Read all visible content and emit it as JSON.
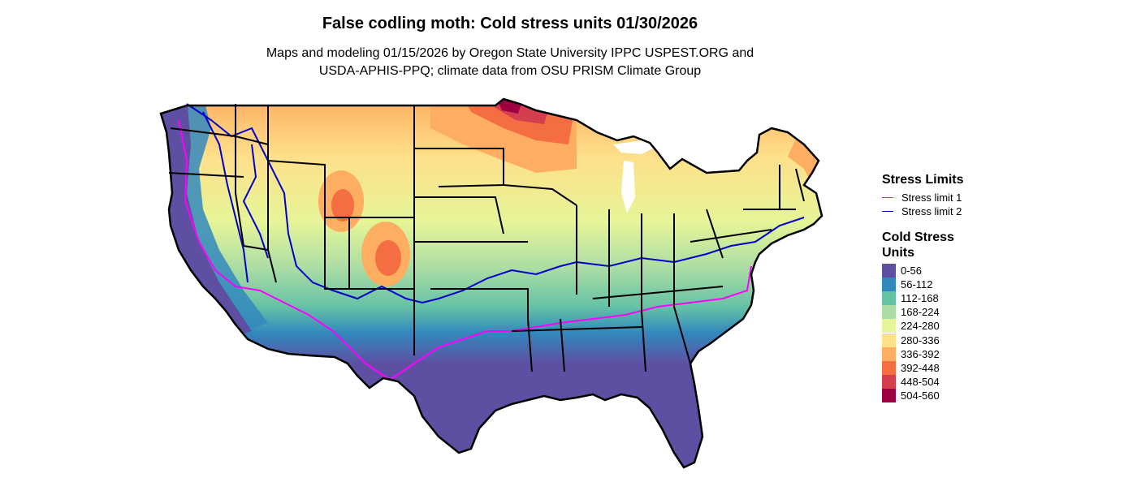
{
  "title": "False codling moth: Cold stress units 01/30/2026",
  "subtitle_lines": [
    "Maps and modeling 01/15/2026 by Oregon State University IPPC USPEST.ORG and",
    "USDA-APHIS-PPQ; climate data from OSU PRISM Climate Group"
  ],
  "stress_legend": {
    "title": "Stress Limits",
    "items": [
      {
        "label": "Stress limit 1",
        "color": "#ff00ff"
      },
      {
        "label": "Stress limit 2",
        "color": "#0000cc"
      }
    ]
  },
  "csu_legend": {
    "title_lines": [
      "Cold Stress",
      "Units"
    ],
    "items": [
      {
        "label": "0-56",
        "color": "#5e4fa2"
      },
      {
        "label": "56-112",
        "color": "#3288bd"
      },
      {
        "label": "112-168",
        "color": "#66c2a5"
      },
      {
        "label": "168-224",
        "color": "#abdda4"
      },
      {
        "label": "224-280",
        "color": "#e6f598"
      },
      {
        "label": "280-336",
        "color": "#fee08b"
      },
      {
        "label": "336-392",
        "color": "#fdae61"
      },
      {
        "label": "392-448",
        "color": "#f46d43"
      },
      {
        "label": "448-504",
        "color": "#d53e4f"
      },
      {
        "label": "504-560",
        "color": "#9e0142"
      }
    ]
  }
}
